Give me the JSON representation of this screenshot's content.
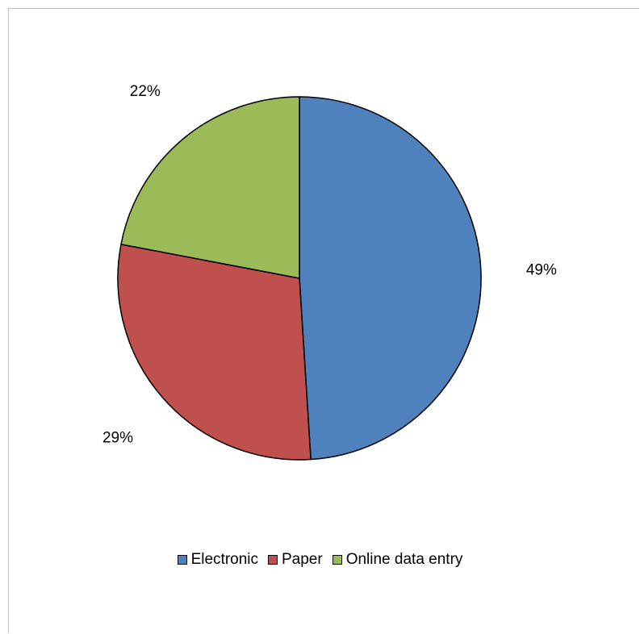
{
  "chart_data": {
    "type": "pie",
    "title": "",
    "legend_position": "bottom",
    "slices": [
      {
        "name": "Electronic",
        "value": 49,
        "label": "49%",
        "color": "#4f81bd"
      },
      {
        "name": "Paper",
        "value": 29,
        "label": "29%",
        "color": "#c0504d"
      },
      {
        "name": "Online data entry",
        "value": 22,
        "label": "22%",
        "color": "#9bbb59"
      }
    ],
    "legend": [
      {
        "name": "Electronic",
        "color": "#4f81bd"
      },
      {
        "name": "Paper",
        "color": "#c0504d"
      },
      {
        "name": "Online data entry",
        "color": "#9bbb59"
      }
    ]
  }
}
